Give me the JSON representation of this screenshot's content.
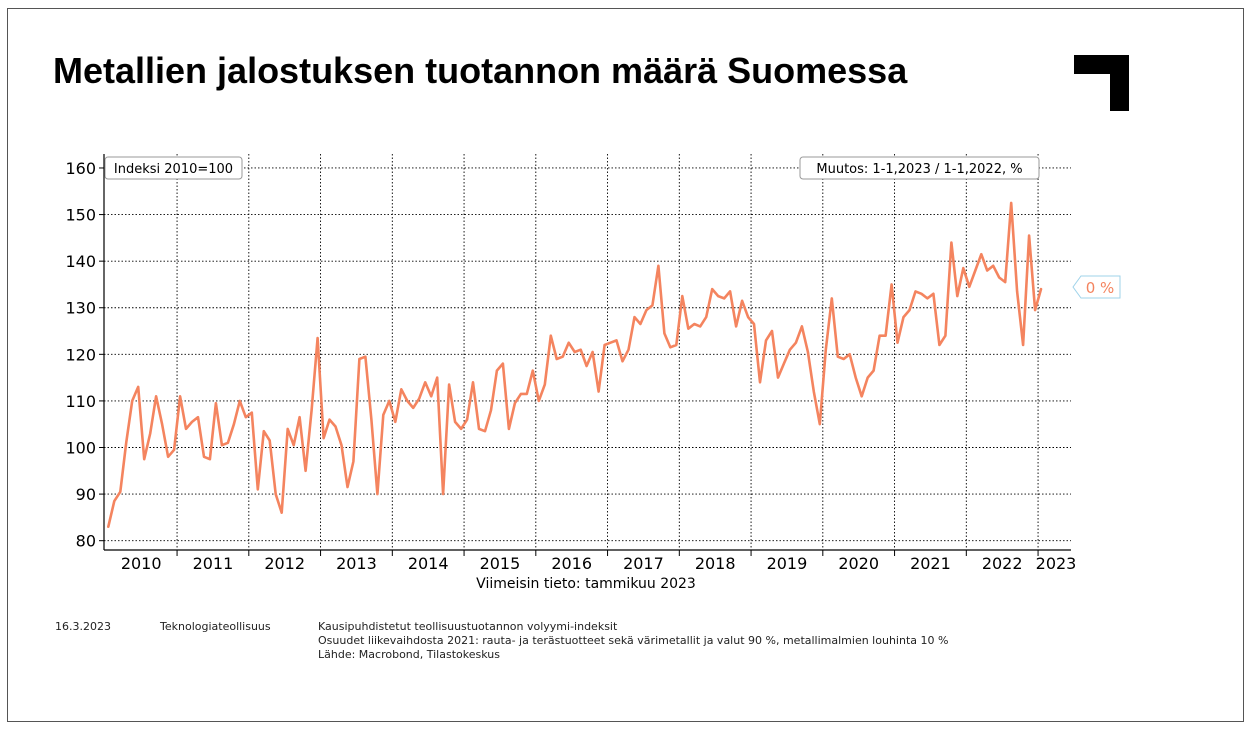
{
  "title": "Metallien jalostuksen tuotannon määrä Suomessa",
  "chart_data": {
    "type": "line",
    "index_label": "Indeksi 2010=100",
    "change_label": "Muutos: 1-1,2023 / 1-1,2022, %",
    "change_value": "0 %",
    "xlabel": "Viimeisin tieto: tammikuu 2023",
    "ylim": [
      78,
      163
    ],
    "yticks": [
      80,
      90,
      100,
      110,
      120,
      130,
      140,
      150,
      160
    ],
    "year_labels": [
      "2010",
      "2011",
      "2012",
      "2013",
      "2014",
      "2015",
      "2016",
      "2017",
      "2018",
      "2019",
      "2020",
      "2021",
      "2022",
      "2023"
    ],
    "grid": true,
    "line_color": "#F4845F",
    "series": [
      {
        "values": [
          83.0,
          88.5,
          90.5,
          101.0,
          110.0,
          113.0,
          97.5,
          103.0,
          111.0,
          105.0,
          98.0,
          99.5,
          111.0,
          104.0,
          105.5,
          106.5,
          98.0,
          97.5,
          109.5,
          100.5,
          101.0,
          105.0,
          110.0,
          106.5,
          107.5,
          91.0,
          103.5,
          101.5,
          90.0,
          86.0,
          104.0,
          100.5,
          106.5,
          95.0,
          108.0,
          123.5,
          102.0,
          106.0,
          104.5,
          100.5,
          91.5,
          97.0,
          119.0,
          119.5,
          106.0,
          90.0,
          107.0,
          110.0,
          105.5,
          112.5,
          110.0,
          108.5,
          110.5,
          114.0,
          111.0,
          115.0,
          90.0,
          113.5,
          105.5,
          104.0,
          106.0,
          114.0,
          104.0,
          103.5,
          108.0,
          116.5,
          118.0,
          104.0,
          109.5,
          111.5,
          111.5,
          116.5,
          110.0,
          113.5,
          124.0,
          119.0,
          119.5,
          122.5,
          120.5,
          121.0,
          117.5,
          120.5,
          112.0,
          122.0,
          122.5,
          123.0,
          118.5,
          121.0,
          128.0,
          126.5,
          129.5,
          130.5,
          139.0,
          124.5,
          121.5,
          122.0,
          132.5,
          125.5,
          126.5,
          126.0,
          128.0,
          134.0,
          132.5,
          132.0,
          133.5,
          126.0,
          131.5,
          128.0,
          126.5,
          114.0,
          123.0,
          125.0,
          115.0,
          118.0,
          121.0,
          122.5,
          126.0,
          120.5,
          112.0,
          105.0,
          121.0,
          132.0,
          119.5,
          119.0,
          120.0,
          115.0,
          111.0,
          115.0,
          116.5,
          124.0,
          124.0,
          135.0,
          122.5,
          128.0,
          129.5,
          133.5,
          133.0,
          132.0,
          133.0,
          122.0,
          124.0,
          144.0,
          132.5,
          138.5,
          134.5,
          138.0,
          141.5,
          138.0,
          139.0,
          136.5,
          135.5,
          152.5,
          133.5,
          122.0,
          145.5,
          129.5,
          134.0
        ]
      }
    ]
  },
  "footer": {
    "date": "16.3.2023",
    "org": "Teknologiateollisuus",
    "notes": [
      "Kausipuhdistetut teollisuustuotannon volyymi-indeksit",
      "Osuudet liikevaihdosta 2021: rauta- ja terästuotteet sekä värimetallit ja valut 90 %, metallimalmien louhinta 10 %",
      "Lähde: Macrobond, Tilastokeskus"
    ]
  }
}
